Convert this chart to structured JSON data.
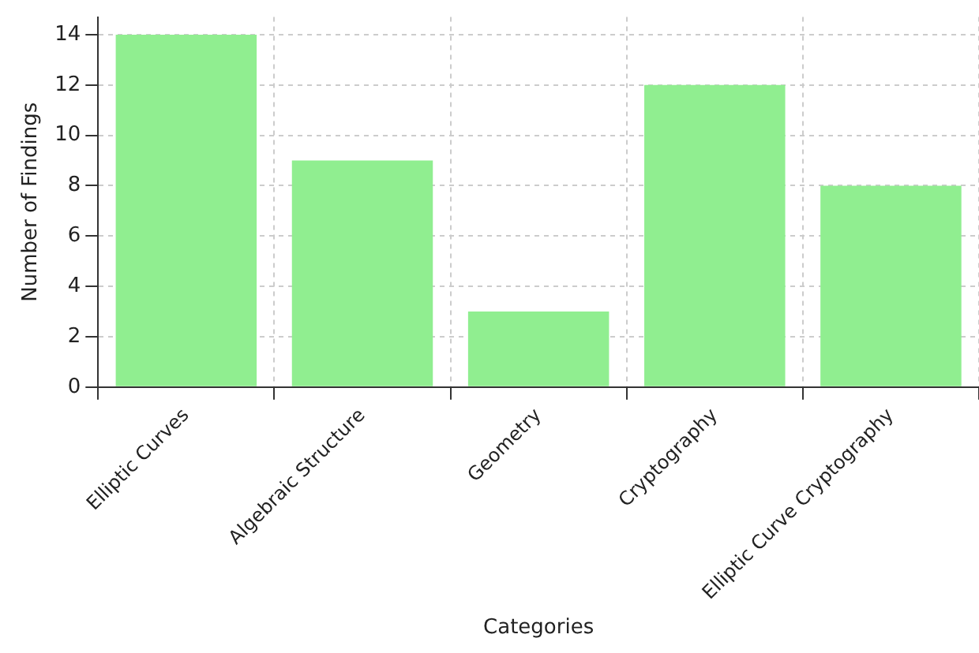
{
  "chart_data": {
    "type": "bar",
    "xlabel": "Categories",
    "ylabel": "Number of Findings",
    "categories": [
      "Elliptic Curves",
      "Algebraic Structure",
      "Geometry",
      "Cryptography",
      "Elliptic Curve Cryptography"
    ],
    "values": [
      14,
      9,
      3,
      12,
      8
    ],
    "color": "#90ee90",
    "ylim": [
      0,
      14.7
    ],
    "yticks": [
      0,
      2,
      4,
      6,
      8,
      10,
      12,
      14
    ],
    "grid": true,
    "legend": false
  }
}
